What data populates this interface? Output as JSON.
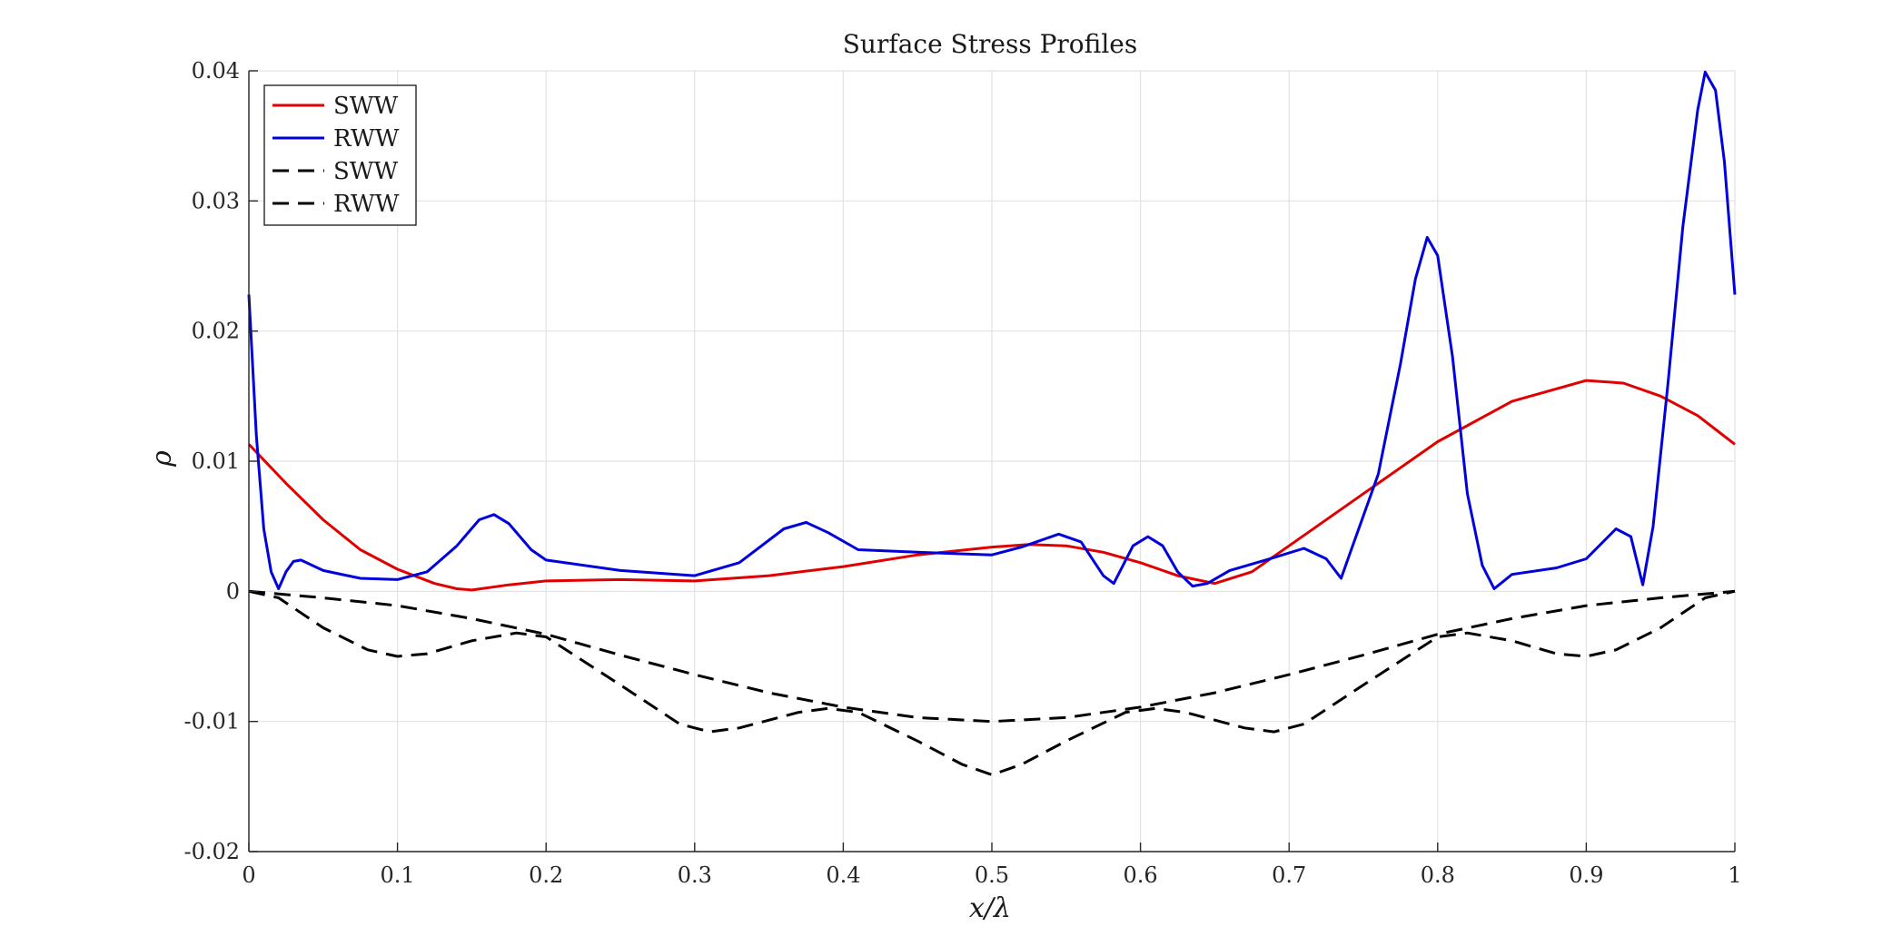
{
  "chart_data": {
    "type": "line",
    "title": "Surface Stress Profiles",
    "xlabel": "x/λ",
    "ylabel": "ρ",
    "xlim": [
      0,
      1
    ],
    "ylim": [
      -0.02,
      0.04
    ],
    "xticks": [
      0,
      0.1,
      0.2,
      0.3,
      0.4,
      0.5,
      0.6,
      0.7,
      0.8,
      0.9,
      1
    ],
    "xtick_labels": [
      "0",
      "0.1",
      "0.2",
      "0.3",
      "0.4",
      "0.5",
      "0.6",
      "0.7",
      "0.8",
      "0.9",
      "1"
    ],
    "yticks": [
      -0.02,
      -0.01,
      0,
      0.01,
      0.02,
      0.03,
      0.04
    ],
    "ytick_labels": [
      "-0.02",
      "-0.01",
      "0",
      "0.01",
      "0.02",
      "0.03",
      "0.04"
    ],
    "grid": true,
    "legend_location": "top-left",
    "series": [
      {
        "name": "SWW",
        "color": "#e00000",
        "style": "solid",
        "x": [
          0,
          0.025,
          0.05,
          0.075,
          0.1,
          0.125,
          0.14,
          0.15,
          0.175,
          0.2,
          0.25,
          0.3,
          0.35,
          0.4,
          0.45,
          0.5,
          0.525,
          0.55,
          0.575,
          0.6,
          0.625,
          0.65,
          0.675,
          0.7,
          0.75,
          0.8,
          0.85,
          0.9,
          0.925,
          0.95,
          0.975,
          1
        ],
        "y": [
          0.0113,
          0.0083,
          0.0055,
          0.0032,
          0.0017,
          0.0006,
          0.0002,
          0.0001,
          0.0005,
          0.0008,
          0.0009,
          0.0008,
          0.0012,
          0.0019,
          0.0028,
          0.0034,
          0.0036,
          0.0035,
          0.003,
          0.0022,
          0.0012,
          0.0006,
          0.0015,
          0.0035,
          0.0075,
          0.0115,
          0.0146,
          0.0162,
          0.016,
          0.015,
          0.0135,
          0.0113
        ]
      },
      {
        "name": "RWW",
        "color": "#0000dd",
        "style": "solid",
        "x": [
          0,
          0.005,
          0.01,
          0.015,
          0.02,
          0.025,
          0.03,
          0.035,
          0.05,
          0.075,
          0.1,
          0.12,
          0.14,
          0.155,
          0.165,
          0.175,
          0.19,
          0.2,
          0.25,
          0.3,
          0.33,
          0.36,
          0.375,
          0.39,
          0.41,
          0.45,
          0.5,
          0.52,
          0.545,
          0.56,
          0.575,
          0.582,
          0.595,
          0.605,
          0.615,
          0.625,
          0.635,
          0.645,
          0.66,
          0.69,
          0.71,
          0.725,
          0.735,
          0.74,
          0.76,
          0.775,
          0.785,
          0.793,
          0.8,
          0.81,
          0.82,
          0.83,
          0.838,
          0.85,
          0.88,
          0.9,
          0.92,
          0.93,
          0.938,
          0.945,
          0.955,
          0.965,
          0.975,
          0.98,
          0.987,
          0.993,
          1
        ],
        "y": [
          0.0228,
          0.012,
          0.0048,
          0.0015,
          0.0002,
          0.0015,
          0.0023,
          0.0024,
          0.0016,
          0.001,
          0.0009,
          0.0015,
          0.0035,
          0.0055,
          0.0059,
          0.0052,
          0.0032,
          0.0024,
          0.0016,
          0.0012,
          0.0022,
          0.0048,
          0.0053,
          0.0045,
          0.0032,
          0.003,
          0.0028,
          0.0034,
          0.0044,
          0.0038,
          0.0012,
          0.0006,
          0.0035,
          0.0042,
          0.0035,
          0.0015,
          0.0004,
          0.0006,
          0.0016,
          0.0026,
          0.0033,
          0.0025,
          0.001,
          0.0026,
          0.009,
          0.0175,
          0.024,
          0.0272,
          0.0258,
          0.018,
          0.0075,
          0.002,
          0.0002,
          0.0013,
          0.0018,
          0.0025,
          0.0048,
          0.0042,
          0.0005,
          0.005,
          0.016,
          0.028,
          0.037,
          0.0399,
          0.0385,
          0.033,
          0.0228
        ]
      },
      {
        "name": "SWW",
        "color": "#000000",
        "style": "dashed",
        "x": [
          0,
          0.05,
          0.1,
          0.15,
          0.2,
          0.25,
          0.3,
          0.35,
          0.4,
          0.45,
          0.5,
          0.55,
          0.6,
          0.65,
          0.7,
          0.75,
          0.8,
          0.85,
          0.9,
          0.95,
          1
        ],
        "y": [
          0,
          -0.0005,
          -0.0011,
          -0.0021,
          -0.0033,
          -0.0049,
          -0.0064,
          -0.0078,
          -0.0089,
          -0.0097,
          -0.01,
          -0.0097,
          -0.0089,
          -0.0078,
          -0.0064,
          -0.0049,
          -0.0033,
          -0.0021,
          -0.0011,
          -0.0005,
          0
        ]
      },
      {
        "name": "RWW",
        "color": "#000000",
        "style": "dashed",
        "x": [
          0,
          0.02,
          0.05,
          0.08,
          0.1,
          0.12,
          0.15,
          0.18,
          0.2,
          0.25,
          0.29,
          0.31,
          0.33,
          0.37,
          0.39,
          0.41,
          0.45,
          0.48,
          0.5,
          0.52,
          0.55,
          0.59,
          0.61,
          0.63,
          0.67,
          0.69,
          0.71,
          0.75,
          0.8,
          0.82,
          0.85,
          0.88,
          0.9,
          0.92,
          0.95,
          0.98,
          1
        ],
        "y": [
          0,
          -0.0005,
          -0.0028,
          -0.0045,
          -0.005,
          -0.0048,
          -0.0038,
          -0.0032,
          -0.0035,
          -0.0072,
          -0.0102,
          -0.0108,
          -0.0105,
          -0.0093,
          -0.009,
          -0.0093,
          -0.0115,
          -0.0133,
          -0.0141,
          -0.0133,
          -0.0115,
          -0.0093,
          -0.009,
          -0.0093,
          -0.0105,
          -0.0108,
          -0.0102,
          -0.0072,
          -0.0035,
          -0.0032,
          -0.0038,
          -0.0048,
          -0.005,
          -0.0045,
          -0.0028,
          -0.0005,
          0
        ]
      }
    ]
  }
}
